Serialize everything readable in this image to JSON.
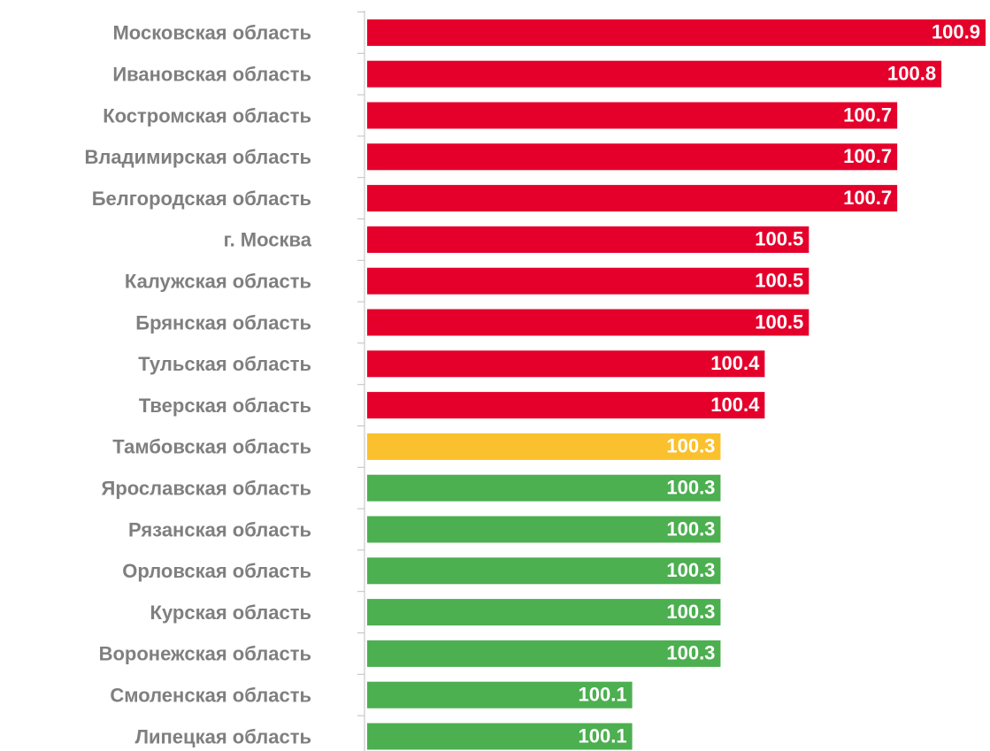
{
  "chart_data": {
    "type": "barh",
    "categories": [
      "Московская область",
      "Ивановская область",
      "Костромская область",
      "Владимирская область",
      "Белгородская область",
      "г. Москва",
      "Калужская область",
      "Брянская область",
      "Тульская область",
      "Тверская область",
      "Тамбовская область",
      "Ярославская область",
      "Рязанская область",
      "Орловская область",
      "Курская область",
      "Воронежская область",
      "Смоленская область",
      "Липецкая область"
    ],
    "values": [
      100.9,
      100.8,
      100.7,
      100.7,
      100.7,
      100.5,
      100.5,
      100.5,
      100.4,
      100.4,
      100.3,
      100.3,
      100.3,
      100.3,
      100.3,
      100.3,
      100.1,
      100.1
    ],
    "colors": [
      "#e4002b",
      "#e4002b",
      "#e4002b",
      "#e4002b",
      "#e4002b",
      "#e4002b",
      "#e4002b",
      "#e4002b",
      "#e4002b",
      "#e4002b",
      "#fbc02d",
      "#4caf50",
      "#4caf50",
      "#4caf50",
      "#4caf50",
      "#4caf50",
      "#4caf50",
      "#4caf50"
    ],
    "xlim": [
      99.5,
      100.9
    ]
  }
}
